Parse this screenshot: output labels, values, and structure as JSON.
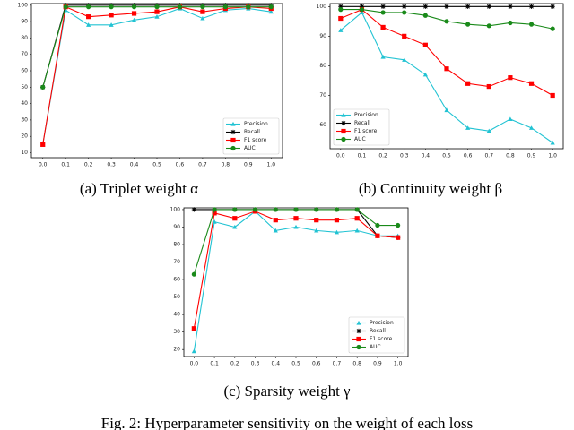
{
  "chart_data": [
    {
      "type": "line",
      "caption": "(a) Triplet weight α",
      "x": [
        0,
        0.1,
        0.2,
        0.3,
        0.4,
        0.5,
        0.6,
        0.7,
        0.8,
        0.9,
        1
      ],
      "xlim": [
        -0.05,
        1.05
      ],
      "xticks": [
        {
          "value": 0,
          "label": "0.0"
        },
        0.1,
        0.2,
        0.3,
        0.4,
        0.5,
        0.6,
        0.7,
        0.8,
        0.9,
        {
          "value": 1,
          "label": "1.0"
        }
      ],
      "ylim": [
        7,
        101
      ],
      "yticks": [
        10,
        20,
        30,
        40,
        50,
        60,
        70,
        80,
        90,
        100
      ],
      "legend": "lower right",
      "series": [
        {
          "name": "Precision",
          "color": "#22c3d3",
          "marker": "triangle",
          "values": [
            15,
            97,
            88,
            88,
            91,
            93,
            98,
            92,
            97,
            98,
            96
          ]
        },
        {
          "name": "Recall",
          "color": "#000000",
          "marker": "star",
          "values": [
            50,
            100,
            100,
            100,
            100,
            100,
            100,
            100,
            100,
            100,
            100
          ]
        },
        {
          "name": "F1 score",
          "color": "#ff0000",
          "marker": "square",
          "values": [
            15,
            99,
            93,
            94,
            95,
            96,
            99,
            96,
            98,
            99,
            98
          ]
        },
        {
          "name": "AUC",
          "color": "#1a8a1a",
          "marker": "circle",
          "values": [
            50,
            99,
            99,
            99,
            99,
            99,
            99,
            99,
            99,
            99,
            99
          ]
        }
      ]
    },
    {
      "type": "line",
      "caption": "(b) Continuity weight β",
      "x": [
        0,
        0.1,
        0.2,
        0.3,
        0.4,
        0.5,
        0.6,
        0.7,
        0.8,
        0.9,
        1
      ],
      "xlim": [
        -0.05,
        1.05
      ],
      "xticks": [
        {
          "value": 0,
          "label": "0.0"
        },
        0.1,
        0.2,
        0.3,
        0.4,
        0.5,
        0.6,
        0.7,
        0.8,
        0.9,
        {
          "value": 1,
          "label": "1.0"
        }
      ],
      "ylim": [
        52,
        101
      ],
      "yticks": [
        60,
        70,
        80,
        90,
        100
      ],
      "legend": "lower left",
      "series": [
        {
          "name": "Precision",
          "color": "#22c3d3",
          "marker": "triangle",
          "values": [
            92,
            98,
            83,
            82,
            77,
            65,
            59,
            58,
            62,
            59,
            54
          ]
        },
        {
          "name": "Recall",
          "color": "#000000",
          "marker": "star",
          "values": [
            100,
            100,
            100,
            100,
            100,
            100,
            100,
            100,
            100,
            100,
            100
          ]
        },
        {
          "name": "F1 score",
          "color": "#ff0000",
          "marker": "square",
          "values": [
            96,
            99,
            93,
            90,
            87,
            79,
            74,
            73,
            76,
            74,
            70
          ]
        },
        {
          "name": "AUC",
          "color": "#1a8a1a",
          "marker": "circle",
          "values": [
            99,
            99,
            98,
            98,
            97,
            95,
            94,
            93.5,
            94.5,
            94,
            92.5
          ]
        }
      ]
    },
    {
      "type": "line",
      "caption": "(c) Sparsity weight γ",
      "x": [
        0,
        0.1,
        0.2,
        0.3,
        0.4,
        0.5,
        0.6,
        0.7,
        0.8,
        0.9,
        1
      ],
      "xlim": [
        -0.05,
        1.05
      ],
      "xticks": [
        {
          "value": 0,
          "label": "0.0"
        },
        0.1,
        0.2,
        0.3,
        0.4,
        0.5,
        0.6,
        0.7,
        0.8,
        0.9,
        {
          "value": 1,
          "label": "1.0"
        }
      ],
      "ylim": [
        16,
        101
      ],
      "yticks": [
        20,
        30,
        40,
        50,
        60,
        70,
        80,
        90,
        100
      ],
      "legend": "lower right",
      "series": [
        {
          "name": "Precision",
          "color": "#22c3d3",
          "marker": "triangle",
          "values": [
            19,
            93,
            90,
            99,
            88,
            90,
            88,
            87,
            88,
            85,
            85
          ]
        },
        {
          "name": "Recall",
          "color": "#000000",
          "marker": "star",
          "values": [
            100,
            100,
            100,
            100,
            100,
            100,
            100,
            100,
            100,
            85,
            84
          ]
        },
        {
          "name": "F1 score",
          "color": "#ff0000",
          "marker": "square",
          "values": [
            32,
            98,
            95,
            99,
            94,
            95,
            94,
            94,
            95,
            85,
            84
          ]
        },
        {
          "name": "AUC",
          "color": "#1a8a1a",
          "marker": "circle",
          "values": [
            63,
            100,
            100,
            100,
            100,
            100,
            100,
            100,
            100,
            91,
            91
          ]
        }
      ]
    }
  ],
  "figure_caption": "Fig. 2: Hyperparameter sensitivity on the weight of each loss"
}
